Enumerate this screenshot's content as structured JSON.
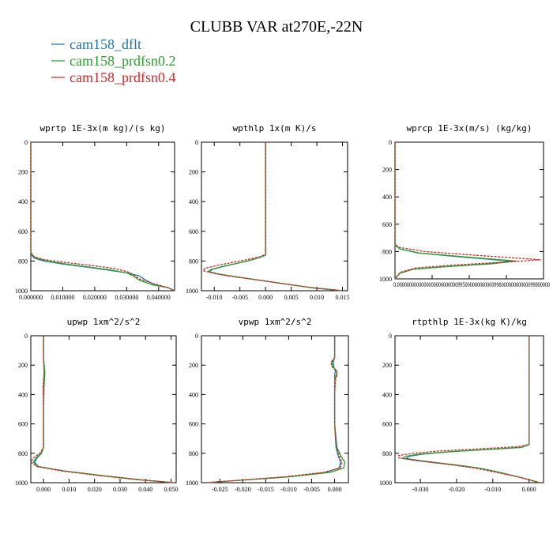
{
  "figure": {
    "title": "CLUBB VAR at270E,-22N",
    "colors": {
      "cam158_dflt": "#1f77b4",
      "cam158_prdfsn0.2": "#2ca02c",
      "cam158_prdfsn0.4": "#d62728"
    }
  },
  "chart_data": [
    {
      "type": "line",
      "title": "wprtp  1E-3x(m kg)/(s kg)",
      "xlim": [
        0,
        0.045
      ],
      "ylim": [
        1000,
        0
      ],
      "x_ticks": [
        "0.000000",
        "0.010000",
        "0.020000",
        "0.030000",
        "0.040000"
      ],
      "x_tick_values": [
        0,
        0.01,
        0.02,
        0.03,
        0.04
      ],
      "y_ticks": [
        0,
        200,
        400,
        600,
        800,
        1000
      ],
      "series": [
        {
          "name": "cam158_dflt",
          "y": [
            0,
            750,
            780,
            800,
            820,
            840,
            860,
            880,
            900,
            930,
            960,
            980,
            1000
          ],
          "x": [
            0,
            0,
            0.001,
            0.004,
            0.01,
            0.017,
            0.024,
            0.03,
            0.034,
            0.036,
            0.039,
            0.043,
            0.045
          ]
        },
        {
          "name": "cam158_prdfsn0.2",
          "y": [
            0,
            750,
            780,
            800,
            820,
            840,
            860,
            880,
            900,
            930,
            960,
            980,
            1000
          ],
          "x": [
            0,
            0,
            0.0015,
            0.005,
            0.011,
            0.018,
            0.025,
            0.03,
            0.032,
            0.034,
            0.038,
            0.043,
            0.045
          ]
        },
        {
          "name": "cam158_prdfsn0.4",
          "y": [
            0,
            740,
            770,
            790,
            810,
            830,
            850,
            870,
            890,
            920,
            950,
            980,
            1000
          ],
          "x": [
            0,
            0,
            0.001,
            0.004,
            0.011,
            0.019,
            0.026,
            0.03,
            0.032,
            0.034,
            0.038,
            0.043,
            0.045
          ]
        }
      ]
    },
    {
      "type": "line",
      "title": "wpthlp  1x(m K)/s",
      "xlim": [
        -0.0125,
        0.016
      ],
      "ylim": [
        1000,
        0
      ],
      "x_ticks": [
        "-0.010",
        "-0.005",
        "0.000",
        "0.005",
        "0.010",
        "0.015"
      ],
      "x_tick_values": [
        -0.01,
        -0.005,
        0,
        0.005,
        0.01,
        0.015
      ],
      "y_ticks": [
        0,
        200,
        400,
        600,
        800,
        1000
      ],
      "series": [
        {
          "name": "cam158_dflt",
          "y": [
            0,
            760,
            775,
            795,
            815,
            835,
            855,
            870,
            885,
            900,
            920,
            950,
            980,
            1000
          ],
          "x": [
            0,
            0,
            -0.001,
            -0.003,
            -0.0055,
            -0.008,
            -0.0103,
            -0.011,
            -0.0095,
            -0.007,
            -0.003,
            0.003,
            0.009,
            0.015
          ]
        },
        {
          "name": "cam158_prdfsn0.2",
          "y": [
            0,
            760,
            775,
            795,
            815,
            835,
            855,
            870,
            885,
            900,
            920,
            950,
            980,
            1000
          ],
          "x": [
            0,
            0,
            -0.001,
            -0.003,
            -0.0055,
            -0.0082,
            -0.0105,
            -0.0112,
            -0.0097,
            -0.007,
            -0.003,
            0.003,
            0.009,
            0.015
          ]
        },
        {
          "name": "cam158_prdfsn0.4",
          "y": [
            0,
            755,
            770,
            790,
            810,
            830,
            850,
            865,
            880,
            900,
            920,
            950,
            980,
            1000
          ],
          "x": [
            0,
            0,
            -0.001,
            -0.0035,
            -0.0065,
            -0.0095,
            -0.0118,
            -0.0122,
            -0.0105,
            -0.0075,
            -0.003,
            0.003,
            0.009,
            0.015
          ]
        }
      ]
    },
    {
      "type": "line",
      "title": "wprcp  1E-3x(m/s) (kg/kg)",
      "xlim": [
        0,
        1
      ],
      "ylim": [
        1000,
        0
      ],
      "x_ticks_text": "0.000000000000000000000000099500000000000099800000000000099800000",
      "y_ticks": [
        0,
        200,
        400,
        600,
        800,
        1000
      ],
      "series": [
        {
          "name": "cam158_dflt",
          "y": [
            0,
            750,
            780,
            810,
            840,
            870,
            890,
            910,
            930,
            960,
            1000
          ],
          "x": [
            0,
            0,
            0.03,
            0.15,
            0.45,
            0.78,
            0.62,
            0.35,
            0.12,
            0.03,
            0
          ]
        },
        {
          "name": "cam158_prdfsn0.2",
          "y": [
            0,
            750,
            780,
            810,
            840,
            870,
            890,
            910,
            930,
            960,
            1000
          ],
          "x": [
            0,
            0,
            0.03,
            0.16,
            0.48,
            0.82,
            0.65,
            0.36,
            0.12,
            0.03,
            0
          ]
        },
        {
          "name": "cam158_prdfsn0.4",
          "y": [
            0,
            745,
            770,
            800,
            830,
            860,
            880,
            900,
            920,
            950,
            1000
          ],
          "x": [
            0,
            0,
            0.03,
            0.2,
            0.58,
            0.98,
            0.7,
            0.38,
            0.14,
            0.04,
            0
          ]
        }
      ]
    },
    {
      "type": "line",
      "title": "upwp  1xm^2/s^2",
      "xlim": [
        -0.005,
        0.052
      ],
      "ylim": [
        1000,
        0
      ],
      "x_ticks": [
        "0.000",
        "0.010",
        "0.020",
        "0.030",
        "0.040",
        "0.050"
      ],
      "x_tick_values": [
        0,
        0.01,
        0.02,
        0.03,
        0.04,
        0.05
      ],
      "y_ticks": [
        0,
        200,
        400,
        600,
        800,
        1000
      ],
      "series": [
        {
          "name": "cam158_dflt",
          "y": [
            0,
            150,
            250,
            350,
            500,
            650,
            760,
            800,
            830,
            860,
            890,
            920,
            950,
            980,
            1000
          ],
          "x": [
            0,
            0,
            0.0003,
            0,
            0,
            0,
            0,
            -0.0008,
            -0.0025,
            -0.0035,
            -0.002,
            0.008,
            0.022,
            0.038,
            0.051
          ]
        },
        {
          "name": "cam158_prdfsn0.2",
          "y": [
            0,
            150,
            250,
            350,
            500,
            650,
            760,
            800,
            830,
            860,
            890,
            920,
            950,
            980,
            1000
          ],
          "x": [
            0,
            0,
            0.0005,
            0.0002,
            0,
            0,
            0,
            -0.001,
            -0.003,
            -0.004,
            -0.0022,
            0.008,
            0.022,
            0.038,
            0.051
          ]
        },
        {
          "name": "cam158_prdfsn0.4",
          "y": [
            0,
            150,
            250,
            350,
            500,
            650,
            760,
            800,
            830,
            860,
            890,
            920,
            950,
            980,
            1000
          ],
          "x": [
            0,
            0,
            0.0002,
            -0.0002,
            0,
            0,
            0,
            -0.0015,
            -0.004,
            -0.005,
            -0.0028,
            0.007,
            0.021,
            0.037,
            0.051
          ]
        }
      ]
    },
    {
      "type": "line",
      "title": "vpwp  1xm^2/s^2",
      "xlim": [
        -0.029,
        0.003
      ],
      "ylim": [
        1000,
        0
      ],
      "x_ticks": [
        "-0.025",
        "-0.020",
        "-0.015",
        "-0.010",
        "-0.005",
        "0.000"
      ],
      "x_tick_values": [
        -0.025,
        -0.02,
        -0.015,
        -0.01,
        -0.005,
        0
      ],
      "y_ticks": [
        0,
        200,
        400,
        600,
        800,
        1000
      ],
      "series": [
        {
          "name": "cam158_dflt",
          "y": [
            0,
            150,
            180,
            210,
            240,
            260,
            300,
            400,
            600,
            760,
            820,
            860,
            900,
            930,
            960,
            1000
          ],
          "x": [
            0,
            0,
            -0.0003,
            -0.0002,
            0.0002,
            0,
            0,
            0,
            0,
            0.0003,
            0.0008,
            0.0013,
            0.001,
            -0.002,
            -0.01,
            -0.028
          ]
        },
        {
          "name": "cam158_prdfsn0.2",
          "y": [
            0,
            150,
            180,
            210,
            240,
            260,
            300,
            400,
            600,
            760,
            820,
            860,
            900,
            930,
            960,
            1000
          ],
          "x": [
            0,
            0,
            -0.0006,
            -0.0004,
            0.0005,
            0.0004,
            0,
            0,
            0,
            0.0005,
            0.0014,
            0.0022,
            0.002,
            -0.001,
            -0.01,
            -0.028
          ]
        },
        {
          "name": "cam158_prdfsn0.4",
          "y": [
            0,
            150,
            180,
            210,
            240,
            260,
            300,
            400,
            600,
            760,
            820,
            860,
            900,
            930,
            960,
            1000
          ],
          "x": [
            0,
            0,
            -0.0008,
            -0.0006,
            0.0003,
            0.0006,
            0.0002,
            0,
            0,
            0.0004,
            0.0011,
            0.0016,
            0.0012,
            -0.0025,
            -0.011,
            -0.028
          ]
        }
      ]
    },
    {
      "type": "line",
      "title": "rtpthlp  1E-3x(kg K)/kg",
      "xlim": [
        -0.037,
        0.004
      ],
      "ylim": [
        1000,
        0
      ],
      "x_ticks": [
        "-0.030",
        "-0.020",
        "-0.010",
        "0.000"
      ],
      "x_tick_values": [
        -0.03,
        -0.02,
        -0.01,
        0
      ],
      "y_ticks": [
        0,
        200,
        400,
        600,
        800,
        1000
      ],
      "series": [
        {
          "name": "cam158_dflt",
          "y": [
            0,
            740,
            760,
            775,
            790,
            805,
            820,
            835,
            850,
            865,
            880,
            900,
            930,
            960,
            1000
          ],
          "x": [
            0,
            0,
            -0.002,
            -0.012,
            -0.022,
            -0.029,
            -0.033,
            -0.034,
            -0.03,
            -0.025,
            -0.02,
            -0.014,
            -0.008,
            -0.003,
            0.003
          ]
        },
        {
          "name": "cam158_prdfsn0.2",
          "y": [
            0,
            740,
            760,
            775,
            790,
            805,
            820,
            835,
            850,
            865,
            880,
            900,
            930,
            960,
            1000
          ],
          "x": [
            0,
            0,
            -0.002,
            -0.012,
            -0.022,
            -0.03,
            -0.034,
            -0.035,
            -0.031,
            -0.026,
            -0.02,
            -0.014,
            -0.008,
            -0.003,
            0.003
          ]
        },
        {
          "name": "cam158_prdfsn0.4",
          "y": [
            0,
            740,
            755,
            770,
            785,
            800,
            815,
            830,
            845,
            860,
            880,
            900,
            930,
            960,
            1000
          ],
          "x": [
            0,
            0,
            -0.003,
            -0.014,
            -0.025,
            -0.032,
            -0.036,
            -0.036,
            -0.032,
            -0.027,
            -0.021,
            -0.015,
            -0.009,
            -0.003,
            0.003
          ]
        }
      ]
    }
  ]
}
